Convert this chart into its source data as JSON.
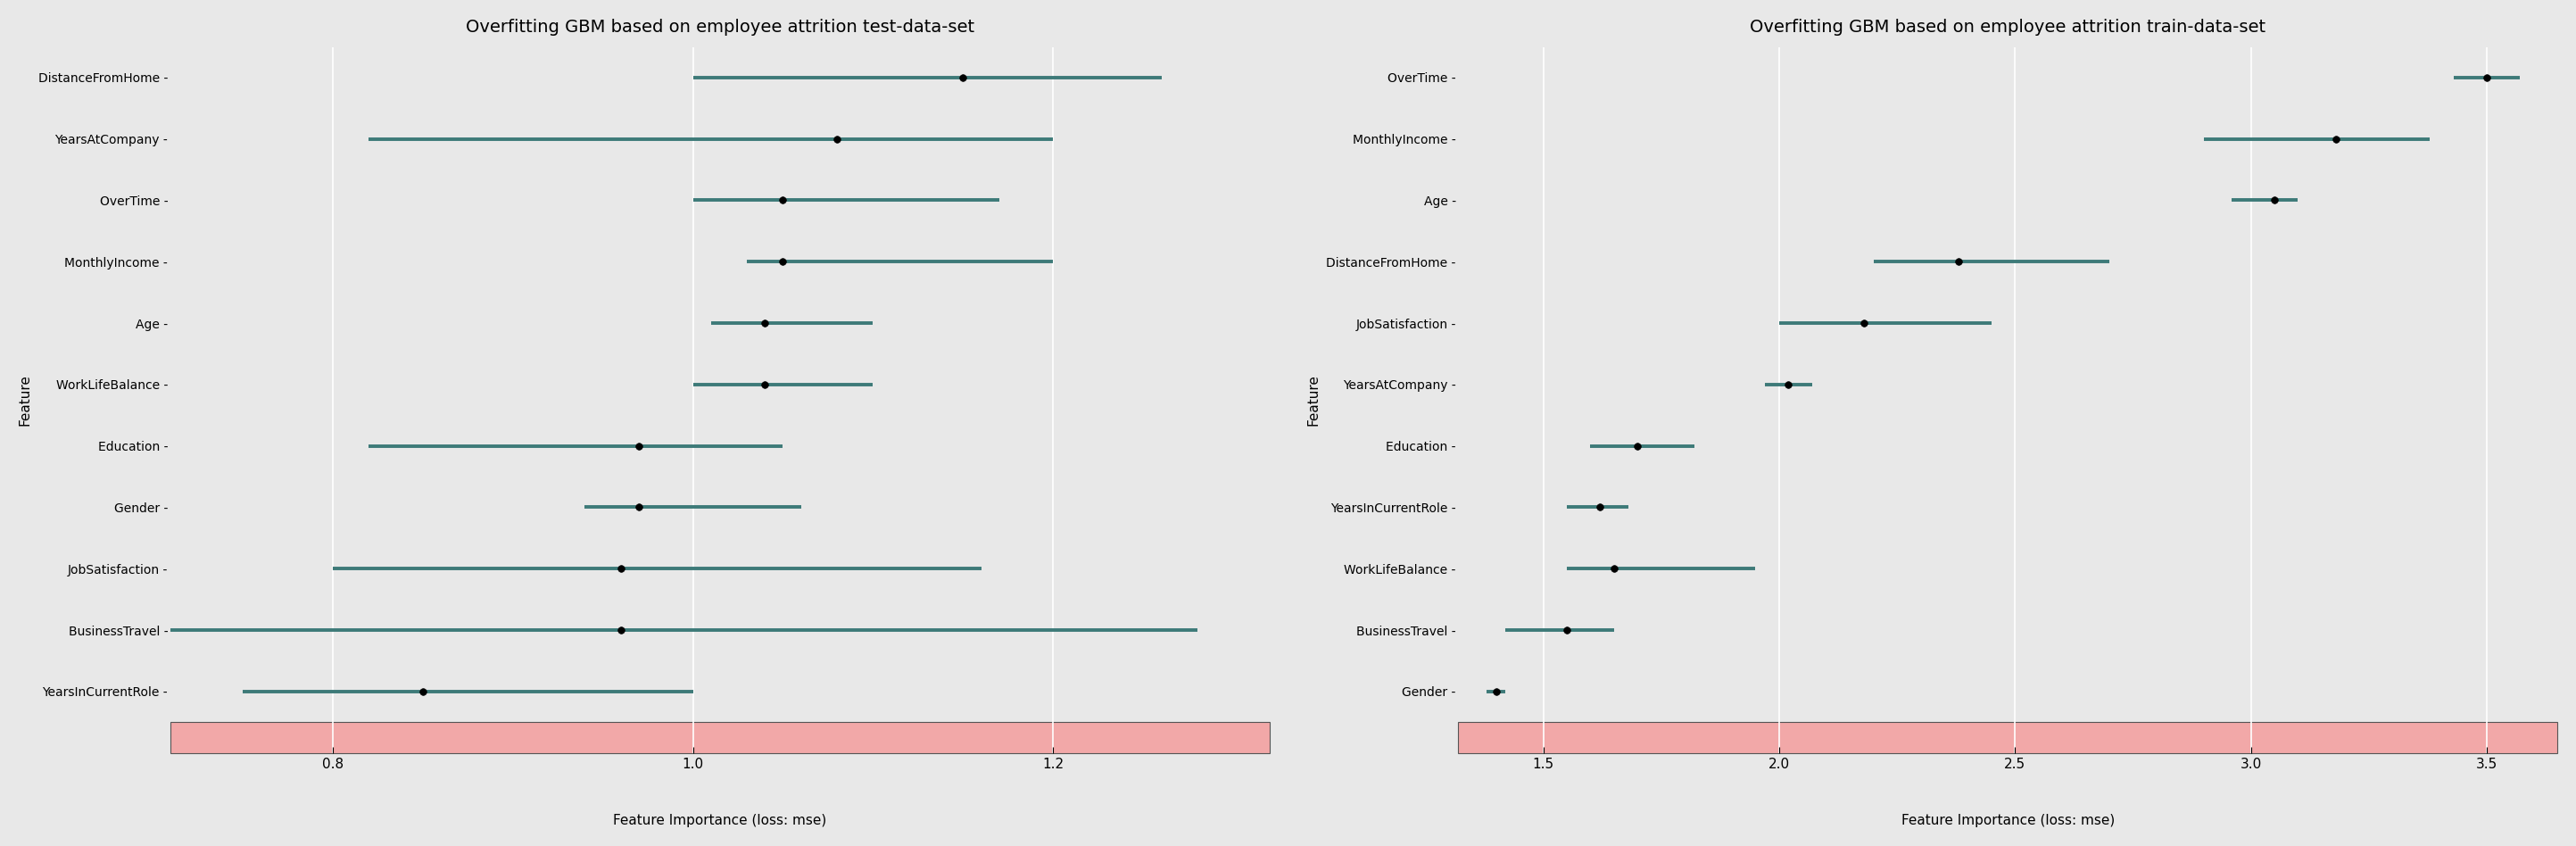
{
  "test": {
    "title": "Overfitting GBM based on employee attrition test-data-set",
    "xlabel": "Feature Importance (loss: mse)",
    "ylabel": "Feature",
    "features": [
      "DistanceFromHome",
      "YearsAtCompany",
      "OverTime",
      "MonthlyIncome",
      "Age",
      "WorkLifeBalance",
      "Education",
      "Gender",
      "JobSatisfaction",
      "BusinessTravel",
      "YearsInCurrentRole"
    ],
    "centers": [
      1.15,
      1.08,
      1.05,
      1.05,
      1.04,
      1.04,
      0.97,
      0.97,
      0.96,
      0.96,
      0.85
    ],
    "lo": [
      1.0,
      0.82,
      1.0,
      1.03,
      1.01,
      1.0,
      0.82,
      0.94,
      0.8,
      0.71,
      0.75
    ],
    "hi": [
      1.26,
      1.2,
      1.17,
      1.2,
      1.1,
      1.1,
      1.05,
      1.06,
      1.16,
      1.28,
      1.0
    ],
    "xlim": [
      0.71,
      1.32
    ],
    "xticks": [
      0.8,
      1.0,
      1.2
    ]
  },
  "train": {
    "title": "Overfitting GBM based on employee attrition train-data-set",
    "xlabel": "Feature Importance (loss: mse)",
    "ylabel": "Feature",
    "features": [
      "OverTime",
      "MonthlyIncome",
      "Age",
      "DistanceFromHome",
      "JobSatisfaction",
      "YearsAtCompany",
      "Education",
      "YearsInCurrentRole",
      "WorkLifeBalance",
      "BusinessTravel",
      "Gender"
    ],
    "centers": [
      3.5,
      3.18,
      3.05,
      2.38,
      2.18,
      2.02,
      1.7,
      1.62,
      1.65,
      1.55,
      1.4
    ],
    "lo": [
      3.43,
      2.9,
      2.96,
      2.2,
      2.0,
      1.97,
      1.6,
      1.55,
      1.55,
      1.42,
      1.38
    ],
    "hi": [
      3.57,
      3.38,
      3.1,
      2.7,
      2.45,
      2.07,
      1.82,
      1.68,
      1.95,
      1.65,
      1.42
    ],
    "xlim": [
      1.32,
      3.65
    ],
    "xticks": [
      1.5,
      2.0,
      2.5,
      3.0,
      3.5
    ]
  },
  "bar_color": "#3d7a78",
  "dot_color": "#000000",
  "bg_color": "#e8e8e8",
  "xband_color": "#f2a8a8",
  "title_fontsize": 14,
  "label_fontsize": 11,
  "ytick_fontsize": 10,
  "xtick_fontsize": 11
}
